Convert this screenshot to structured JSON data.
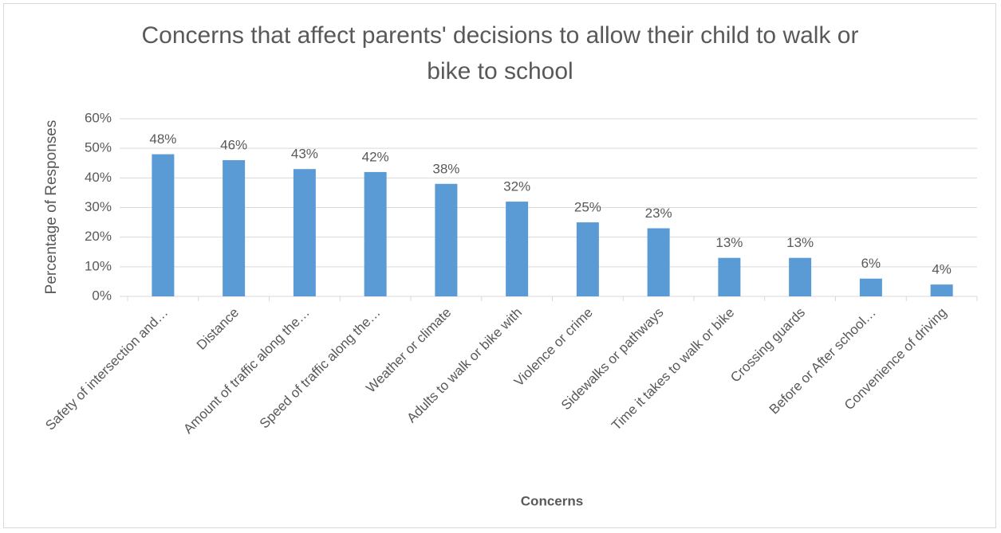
{
  "chart_data": {
    "type": "bar",
    "title": "Concerns that affect parents' decisions to allow their child to walk or bike to school",
    "x_label": "Concerns",
    "y_label": "Percentage of Responses",
    "categories": [
      "Safety of intersection and…",
      "Distance",
      "Amount of traffic along the…",
      "Speed of traffic along the…",
      "Weather or climate",
      "Adults to walk or bike with",
      "Violence or crime",
      "Sidewalks or pathways",
      "Time it takes to walk or bike",
      "Crossing guards",
      "Before or After school…",
      "Convenience of driving"
    ],
    "values": [
      48,
      46,
      43,
      42,
      38,
      32,
      25,
      23,
      13,
      13,
      6,
      4
    ],
    "value_labels": [
      "48%",
      "46%",
      "43%",
      "42%",
      "38%",
      "32%",
      "25%",
      "23%",
      "13%",
      "13%",
      "6%",
      "4%"
    ],
    "color": "#5b9bd5",
    "ylim": [
      0,
      60
    ],
    "yticks": [
      {
        "value": 0,
        "label": "0%"
      },
      {
        "value": 10,
        "label": "10%"
      },
      {
        "value": 20,
        "label": "20%"
      },
      {
        "value": 30,
        "label": "30%"
      },
      {
        "value": 40,
        "label": "40%"
      },
      {
        "value": 50,
        "label": "50%"
      },
      {
        "value": 60,
        "label": "60%"
      }
    ],
    "grid": true
  }
}
